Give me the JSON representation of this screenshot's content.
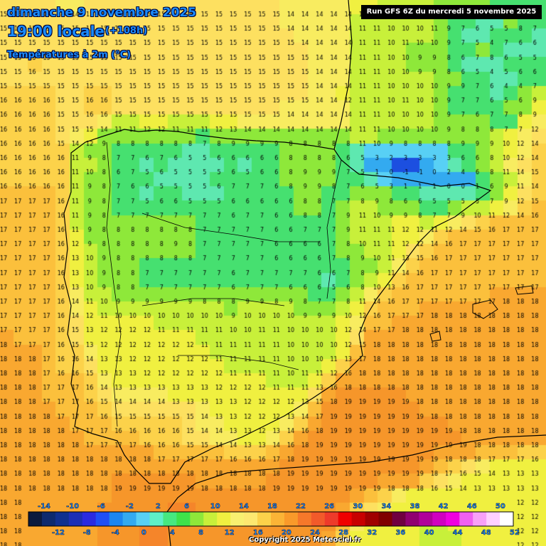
{
  "header": {
    "date": "dimanche 9 novembre 2025",
    "time": "19:00 locale",
    "lead": "(+108h)",
    "variable": "Températures à 2m (°C)"
  },
  "run_label": "Run GFS 6Z du mercredi 5 novembre 2025",
  "copyright": "Copyright 2025 Meteociel.fr",
  "legend": {
    "top_labels": [
      "-14",
      "-10",
      "-6",
      "-2",
      "2",
      "6",
      "10",
      "14",
      "18",
      "22",
      "26",
      "30",
      "34",
      "38",
      "42",
      "46",
      "50"
    ],
    "bottom_labels": [
      "-12",
      "-8",
      "-4",
      "0",
      "4",
      "8",
      "12",
      "16",
      "20",
      "24",
      "28",
      "32",
      "36",
      "40",
      "44",
      "48",
      "52"
    ],
    "colors": [
      "#0b1a3d",
      "#0d2a6e",
      "#10308f",
      "#1c2fb5",
      "#2b2be0",
      "#1f4ff5",
      "#1c86f0",
      "#33aaf0",
      "#58d0f5",
      "#5ef0c8",
      "#46e880",
      "#3ee24a",
      "#8ee83a",
      "#c8f03a",
      "#f0f040",
      "#f8f070",
      "#fde870",
      "#fcd24a",
      "#fbb436",
      "#f99a2a",
      "#f6782a",
      "#f25a2a",
      "#ee3a2a",
      "#f00000",
      "#c80000",
      "#a00000",
      "#800000",
      "#700040",
      "#900070",
      "#b0009a",
      "#d000c0",
      "#f000e0",
      "#f060f0",
      "#f8a0f8",
      "#ffd0ff",
      "#ffffff"
    ]
  },
  "temperature_grid": [
    [
      15,
      15,
      15,
      15,
      14,
      14,
      15,
      15,
      15,
      15,
      15,
      15,
      15,
      15,
      15,
      15,
      15,
      15,
      15,
      15,
      14,
      14,
      14,
      14,
      14,
      12,
      12,
      11,
      11,
      10,
      10,
      9,
      8,
      8,
      8,
      7,
      7,
      7,
      7
    ],
    [
      15,
      15,
      15,
      15,
      15,
      15,
      15,
      15,
      15,
      15,
      15,
      15,
      15,
      15,
      15,
      15,
      15,
      15,
      15,
      15,
      14,
      14,
      14,
      14,
      14,
      11,
      11,
      10,
      10,
      10,
      11,
      9,
      7,
      6,
      5,
      5,
      8,
      7,
      6
    ],
    [
      15,
      15,
      15,
      15,
      15,
      15,
      15,
      15,
      15,
      15,
      15,
      15,
      15,
      15,
      15,
      15,
      15,
      15,
      15,
      15,
      15,
      14,
      14,
      14,
      14,
      11,
      11,
      10,
      11,
      10,
      10,
      9,
      7,
      5,
      4,
      7,
      6,
      6,
      5
    ],
    [
      15,
      15,
      15,
      15,
      15,
      15,
      15,
      15,
      15,
      15,
      15,
      15,
      15,
      15,
      15,
      15,
      15,
      15,
      15,
      15,
      15,
      15,
      14,
      14,
      14,
      11,
      11,
      10,
      10,
      9,
      9,
      8,
      6,
      7,
      8,
      6,
      5,
      5,
      5
    ],
    [
      15,
      15,
      16,
      15,
      15,
      15,
      15,
      15,
      15,
      15,
      15,
      15,
      15,
      15,
      15,
      15,
      15,
      15,
      15,
      15,
      15,
      15,
      14,
      14,
      14,
      11,
      11,
      10,
      10,
      9,
      9,
      8,
      6,
      5,
      4,
      5,
      6,
      6,
      6
    ],
    [
      15,
      15,
      15,
      15,
      15,
      15,
      15,
      15,
      15,
      15,
      15,
      15,
      15,
      15,
      15,
      15,
      15,
      15,
      15,
      15,
      15,
      15,
      14,
      14,
      14,
      11,
      11,
      10,
      10,
      10,
      10,
      9,
      9,
      7,
      6,
      4,
      4,
      7,
      7
    ],
    [
      16,
      16,
      16,
      16,
      15,
      15,
      16,
      16,
      15,
      15,
      15,
      15,
      15,
      15,
      15,
      15,
      15,
      15,
      15,
      15,
      15,
      15,
      14,
      14,
      12,
      11,
      11,
      10,
      11,
      10,
      10,
      9,
      7,
      7,
      6,
      5,
      6,
      9,
      10
    ],
    [
      16,
      16,
      16,
      16,
      15,
      15,
      16,
      16,
      15,
      15,
      15,
      15,
      15,
      15,
      15,
      15,
      15,
      15,
      15,
      15,
      14,
      14,
      14,
      14,
      14,
      11,
      11,
      10,
      10,
      10,
      10,
      9,
      7,
      6,
      7,
      7,
      8,
      9,
      12
    ],
    [
      16,
      16,
      16,
      16,
      15,
      15,
      15,
      14,
      11,
      11,
      12,
      12,
      11,
      11,
      11,
      12,
      13,
      14,
      14,
      14,
      14,
      14,
      14,
      14,
      14,
      11,
      11,
      10,
      10,
      10,
      10,
      9,
      8,
      8,
      8,
      7,
      7,
      12,
      14
    ],
    [
      16,
      16,
      16,
      16,
      15,
      14,
      12,
      9,
      8,
      8,
      8,
      8,
      8,
      8,
      7,
      8,
      9,
      9,
      9,
      9,
      8,
      8,
      8,
      8,
      8,
      11,
      10,
      9,
      8,
      8,
      8,
      8,
      9,
      9,
      9,
      10,
      12,
      14,
      15
    ],
    [
      16,
      16,
      16,
      16,
      16,
      11,
      9,
      8,
      7,
      7,
      6,
      7,
      6,
      5,
      5,
      6,
      6,
      6,
      6,
      6,
      8,
      8,
      8,
      8,
      6,
      5,
      3,
      2,
      3,
      3,
      3,
      3,
      6,
      6,
      8,
      10,
      12,
      14,
      16
    ],
    [
      16,
      16,
      16,
      16,
      16,
      11,
      10,
      8,
      6,
      7,
      5,
      6,
      5,
      5,
      5,
      5,
      6,
      5,
      6,
      6,
      8,
      9,
      9,
      9,
      7,
      5,
      1,
      0,
      -1,
      -1,
      0,
      2,
      4,
      6,
      8,
      11,
      14,
      15,
      16
    ],
    [
      16,
      16,
      16,
      16,
      16,
      11,
      9,
      8,
      7,
      6,
      6,
      5,
      5,
      5,
      5,
      6,
      7,
      7,
      7,
      6,
      8,
      9,
      9,
      8,
      7,
      6,
      5,
      3,
      1,
      1,
      1,
      0,
      0,
      1,
      6,
      9,
      11,
      14,
      16
    ],
    [
      17,
      17,
      17,
      17,
      16,
      11,
      9,
      8,
      7,
      7,
      5,
      6,
      6,
      5,
      5,
      5,
      6,
      6,
      6,
      6,
      6,
      8,
      8,
      7,
      7,
      8,
      9,
      8,
      6,
      6,
      5,
      5,
      5,
      5,
      7,
      9,
      12,
      15,
      16
    ],
    [
      17,
      17,
      17,
      17,
      16,
      11,
      9,
      8,
      7,
      7,
      7,
      7,
      7,
      7,
      7,
      7,
      6,
      7,
      7,
      6,
      6,
      8,
      8,
      7,
      9,
      11,
      10,
      9,
      9,
      8,
      7,
      7,
      9,
      10,
      11,
      12,
      14,
      16,
      17
    ],
    [
      17,
      17,
      17,
      17,
      16,
      11,
      9,
      8,
      8,
      8,
      8,
      8,
      8,
      8,
      7,
      7,
      7,
      7,
      7,
      6,
      6,
      7,
      7,
      7,
      9,
      11,
      11,
      11,
      12,
      12,
      11,
      12,
      14,
      15,
      16,
      17,
      17,
      17,
      17
    ],
    [
      17,
      17,
      17,
      17,
      16,
      12,
      9,
      8,
      8,
      8,
      8,
      8,
      9,
      8,
      7,
      7,
      7,
      7,
      7,
      6,
      6,
      6,
      6,
      7,
      8,
      10,
      11,
      11,
      12,
      12,
      14,
      16,
      17,
      17,
      17,
      17,
      17,
      17,
      17
    ],
    [
      17,
      17,
      17,
      17,
      16,
      13,
      10,
      9,
      8,
      8,
      8,
      8,
      8,
      8,
      7,
      7,
      7,
      7,
      7,
      6,
      6,
      6,
      6,
      7,
      8,
      9,
      10,
      11,
      13,
      15,
      16,
      17,
      17,
      17,
      17,
      17,
      17,
      17,
      17
    ],
    [
      17,
      17,
      17,
      17,
      16,
      13,
      10,
      9,
      8,
      8,
      7,
      7,
      7,
      7,
      7,
      7,
      6,
      7,
      7,
      7,
      7,
      7,
      6,
      6,
      7,
      8,
      9,
      11,
      14,
      16,
      17,
      17,
      17,
      17,
      17,
      17,
      17,
      17,
      17
    ],
    [
      17,
      17,
      17,
      17,
      16,
      13,
      10,
      9,
      8,
      8,
      7,
      7,
      7,
      7,
      7,
      7,
      6,
      7,
      7,
      7,
      6,
      6,
      6,
      5,
      6,
      8,
      10,
      13,
      16,
      17,
      17,
      17,
      17,
      17,
      17,
      17,
      17,
      17,
      17
    ],
    [
      17,
      17,
      17,
      17,
      16,
      14,
      11,
      10,
      9,
      9,
      9,
      9,
      9,
      9,
      8,
      8,
      8,
      9,
      9,
      8,
      9,
      8,
      7,
      7,
      8,
      11,
      14,
      16,
      17,
      17,
      17,
      17,
      17,
      17,
      17,
      18,
      18,
      18,
      18
    ],
    [
      17,
      17,
      17,
      17,
      16,
      14,
      12,
      11,
      10,
      10,
      10,
      10,
      10,
      10,
      10,
      10,
      9,
      10,
      10,
      10,
      10,
      9,
      9,
      9,
      10,
      12,
      16,
      17,
      17,
      17,
      18,
      18,
      18,
      18,
      18,
      18,
      18,
      18,
      18
    ],
    [
      17,
      17,
      17,
      17,
      16,
      15,
      13,
      12,
      12,
      12,
      12,
      11,
      11,
      11,
      11,
      11,
      10,
      10,
      11,
      11,
      10,
      10,
      10,
      10,
      12,
      14,
      17,
      17,
      18,
      18,
      18,
      18,
      18,
      18,
      18,
      18,
      18,
      18,
      18
    ],
    [
      18,
      17,
      17,
      17,
      16,
      15,
      13,
      12,
      12,
      12,
      12,
      12,
      12,
      12,
      11,
      11,
      11,
      11,
      11,
      11,
      10,
      10,
      10,
      10,
      12,
      15,
      18,
      18,
      18,
      18,
      18,
      18,
      18,
      18,
      18,
      18,
      18,
      18,
      18
    ],
    [
      18,
      18,
      18,
      17,
      16,
      16,
      14,
      13,
      13,
      12,
      12,
      12,
      12,
      12,
      12,
      11,
      11,
      11,
      11,
      11,
      10,
      10,
      10,
      11,
      13,
      17,
      18,
      18,
      18,
      18,
      18,
      18,
      18,
      18,
      18,
      18,
      18,
      18,
      18
    ],
    [
      18,
      18,
      18,
      17,
      16,
      16,
      15,
      13,
      13,
      13,
      12,
      12,
      12,
      12,
      12,
      12,
      11,
      11,
      11,
      11,
      10,
      11,
      11,
      12,
      16,
      18,
      18,
      18,
      18,
      18,
      18,
      18,
      18,
      18,
      18,
      18,
      18,
      18,
      18
    ],
    [
      18,
      18,
      18,
      17,
      17,
      17,
      16,
      14,
      13,
      13,
      13,
      13,
      13,
      13,
      13,
      12,
      12,
      12,
      12,
      11,
      11,
      11,
      13,
      16,
      18,
      18,
      18,
      18,
      18,
      18,
      18,
      18,
      18,
      18,
      18,
      18,
      18,
      18,
      18
    ],
    [
      18,
      18,
      18,
      17,
      17,
      17,
      16,
      15,
      14,
      14,
      14,
      14,
      13,
      13,
      13,
      13,
      13,
      12,
      12,
      12,
      12,
      13,
      15,
      18,
      19,
      19,
      19,
      19,
      19,
      18,
      18,
      18,
      18,
      18,
      18,
      18,
      18,
      18,
      18
    ],
    [
      18,
      18,
      18,
      18,
      17,
      17,
      17,
      16,
      15,
      15,
      15,
      15,
      15,
      15,
      14,
      13,
      13,
      12,
      12,
      12,
      13,
      14,
      17,
      19,
      19,
      19,
      19,
      19,
      19,
      19,
      18,
      18,
      18,
      18,
      18,
      18,
      18,
      18,
      18
    ],
    [
      18,
      18,
      18,
      18,
      18,
      17,
      17,
      17,
      16,
      16,
      16,
      16,
      16,
      15,
      14,
      14,
      13,
      13,
      12,
      13,
      14,
      16,
      18,
      19,
      19,
      19,
      19,
      19,
      19,
      19,
      19,
      19,
      18,
      18,
      18,
      18,
      18,
      18,
      18
    ],
    [
      18,
      18,
      18,
      18,
      18,
      18,
      17,
      17,
      17,
      17,
      16,
      16,
      16,
      15,
      15,
      14,
      14,
      13,
      13,
      14,
      16,
      18,
      19,
      19,
      19,
      19,
      19,
      19,
      19,
      19,
      19,
      19,
      19,
      18,
      18,
      18,
      18,
      18,
      18
    ],
    [
      18,
      18,
      18,
      18,
      18,
      18,
      18,
      18,
      18,
      18,
      18,
      17,
      17,
      17,
      17,
      17,
      16,
      16,
      16,
      17,
      18,
      19,
      19,
      19,
      19,
      19,
      19,
      19,
      19,
      19,
      19,
      18,
      18,
      18,
      17,
      17,
      17,
      16,
      16
    ],
    [
      18,
      18,
      18,
      18,
      18,
      18,
      18,
      18,
      18,
      18,
      18,
      18,
      18,
      18,
      18,
      18,
      18,
      18,
      18,
      18,
      19,
      19,
      19,
      19,
      19,
      19,
      19,
      19,
      19,
      19,
      18,
      17,
      16,
      15,
      14,
      13,
      13,
      13,
      13
    ],
    [
      18,
      18,
      18,
      18,
      18,
      18,
      18,
      18,
      19,
      19,
      19,
      19,
      19,
      19,
      18,
      18,
      18,
      18,
      18,
      19,
      19,
      19,
      19,
      19,
      19,
      19,
      19,
      18,
      18,
      18,
      16,
      15,
      14,
      13,
      13,
      13,
      13,
      13,
      13
    ],
    [
      18,
      18,
      18,
      18,
      18,
      18,
      18,
      18,
      19,
      19,
      19,
      19,
      19,
      19,
      19,
      19,
      19,
      19,
      19,
      19,
      19,
      19,
      19,
      19,
      19,
      18,
      17,
      16,
      14,
      13,
      13,
      12,
      12,
      12,
      12,
      12,
      12,
      12,
      12
    ],
    [
      18,
      18,
      18,
      18,
      18,
      18,
      18,
      19,
      19,
      19,
      19,
      19,
      20,
      20,
      19,
      19,
      19,
      19,
      19,
      19,
      19,
      19,
      19,
      19,
      18,
      16,
      15,
      14,
      13,
      12,
      12,
      12,
      12,
      12,
      12,
      12,
      12,
      12,
      12
    ],
    [
      18,
      18,
      18,
      18,
      18,
      18,
      18,
      19,
      19,
      19,
      20,
      20,
      19,
      19,
      19,
      19,
      19,
      19,
      19,
      19,
      19,
      19,
      19,
      19,
      17,
      14,
      13,
      13,
      12,
      12,
      11,
      11,
      12,
      12,
      12,
      12,
      12,
      12,
      12
    ],
    [
      18,
      18,
      18,
      18,
      18,
      18,
      18,
      19,
      19,
      19,
      20,
      20,
      19,
      19,
      19,
      19,
      19,
      19,
      19,
      19,
      19,
      19,
      19,
      18,
      16,
      13,
      13,
      12,
      12,
      12,
      11,
      11,
      11,
      12,
      12,
      12,
      12,
      12,
      12
    ]
  ]
}
